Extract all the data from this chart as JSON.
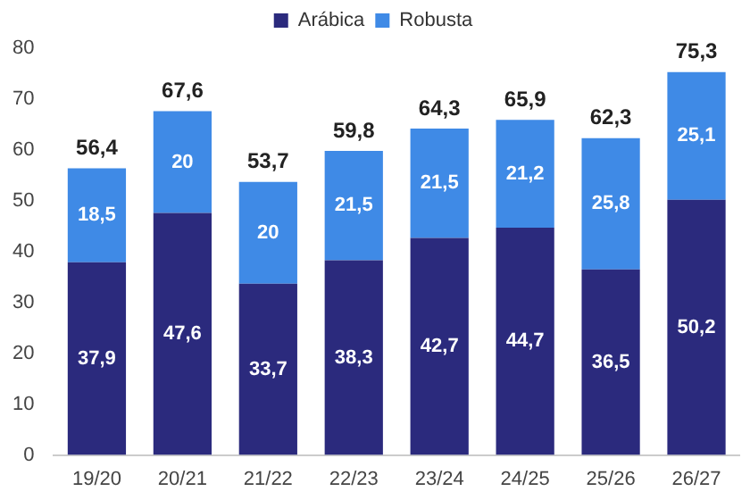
{
  "chart_data": {
    "type": "bar",
    "stacked": true,
    "categories": [
      "19/20",
      "20/21",
      "21/22",
      "22/23",
      "23/24",
      "24/25",
      "25/26",
      "26/27"
    ],
    "series": [
      {
        "name": "Arábica",
        "color": "#2b2a7d",
        "values": [
          37.9,
          47.6,
          33.7,
          38.3,
          42.7,
          44.7,
          36.5,
          50.2
        ],
        "value_labels": [
          "37,9",
          "47,6",
          "33,7",
          "38,3",
          "42,7",
          "44,7",
          "36,5",
          "50,2"
        ]
      },
      {
        "name": "Robusta",
        "color": "#3f8ae6",
        "values": [
          18.5,
          20,
          20,
          21.5,
          21.5,
          21.2,
          25.8,
          25.1
        ],
        "value_labels": [
          "18,5",
          "20",
          "20",
          "21,5",
          "21,5",
          "21,2",
          "25,8",
          "25,1"
        ]
      }
    ],
    "totals": [
      "56,4",
      "67,6",
      "53,7",
      "59,8",
      "64,3",
      "65,9",
      "62,3",
      "75,3"
    ],
    "ylim": [
      0,
      80
    ],
    "yticks": [
      0,
      10,
      20,
      30,
      40,
      50,
      60,
      70,
      80
    ],
    "grid": false,
    "legend": "top"
  }
}
